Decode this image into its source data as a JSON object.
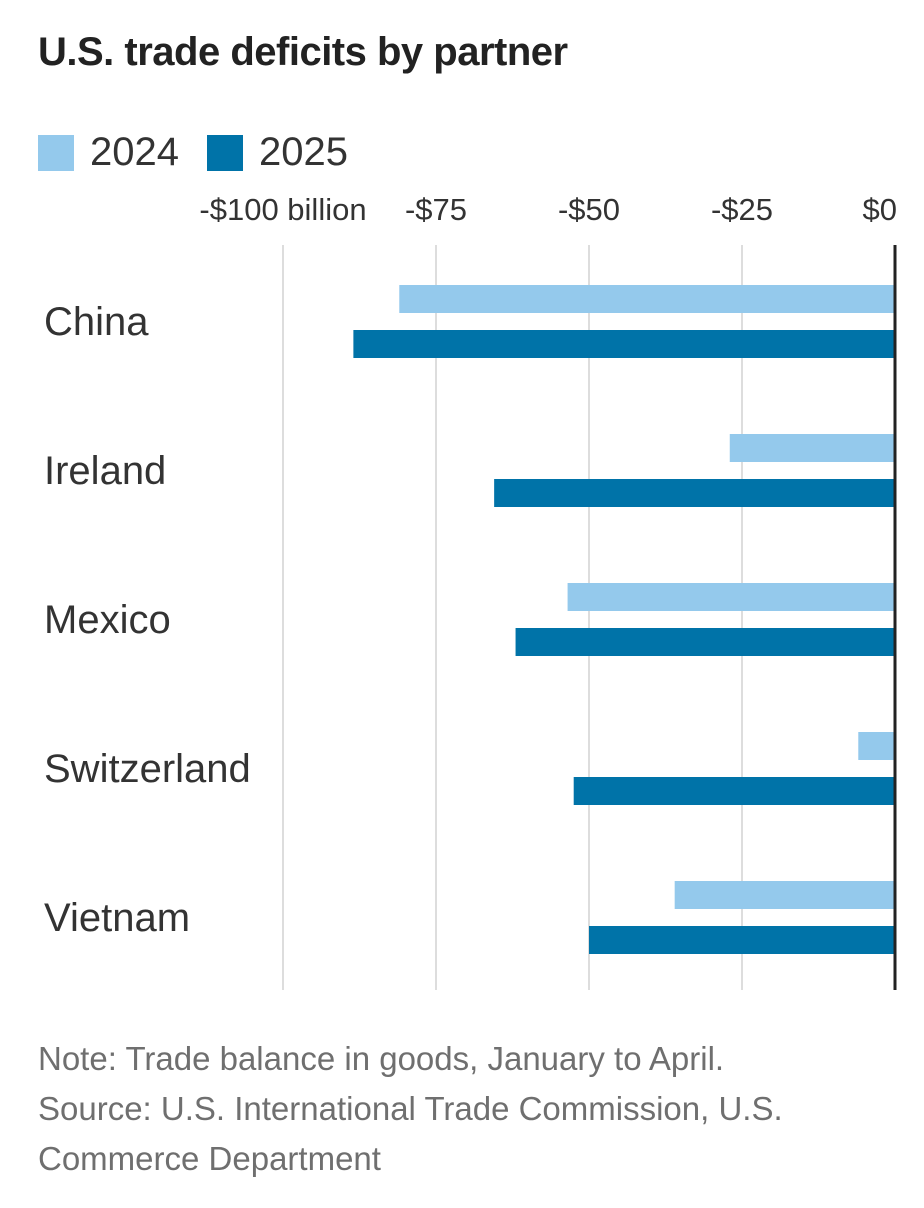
{
  "title": "U.S. trade deficits by partner",
  "legend": {
    "items": [
      {
        "label": "2024",
        "color": "#94c9ec"
      },
      {
        "label": "2025",
        "color": "#0073a8"
      }
    ]
  },
  "note": "Note: Trade balance in goods, January to April.",
  "source": "Source: U.S. International Trade Commission, U.S. Commerce Department",
  "colors": {
    "gridline": "#dddddd",
    "zero_axis": "#222222"
  },
  "chart_data": {
    "type": "bar",
    "orientation": "horizontal",
    "categories": [
      "China",
      "Ireland",
      "Mexico",
      "Switzerland",
      "Vietnam"
    ],
    "series": [
      {
        "name": "2024",
        "color": "#94c9ec",
        "values": [
          -81,
          -27,
          -53.5,
          -6,
          -36
        ]
      },
      {
        "name": "2025",
        "color": "#0073a8",
        "values": [
          -88.5,
          -65.5,
          -62,
          -52.5,
          -50
        ]
      }
    ],
    "xlim": [
      -100,
      0
    ],
    "xticks": [
      {
        "value": -100,
        "label": "-$100 billion"
      },
      {
        "value": -75,
        "label": "-$75"
      },
      {
        "value": -50,
        "label": "-$50"
      },
      {
        "value": -25,
        "label": "-$25"
      },
      {
        "value": 0,
        "label": "$0"
      }
    ],
    "grid": true,
    "legend_position": "top-left",
    "xlabel": "",
    "ylabel": ""
  }
}
